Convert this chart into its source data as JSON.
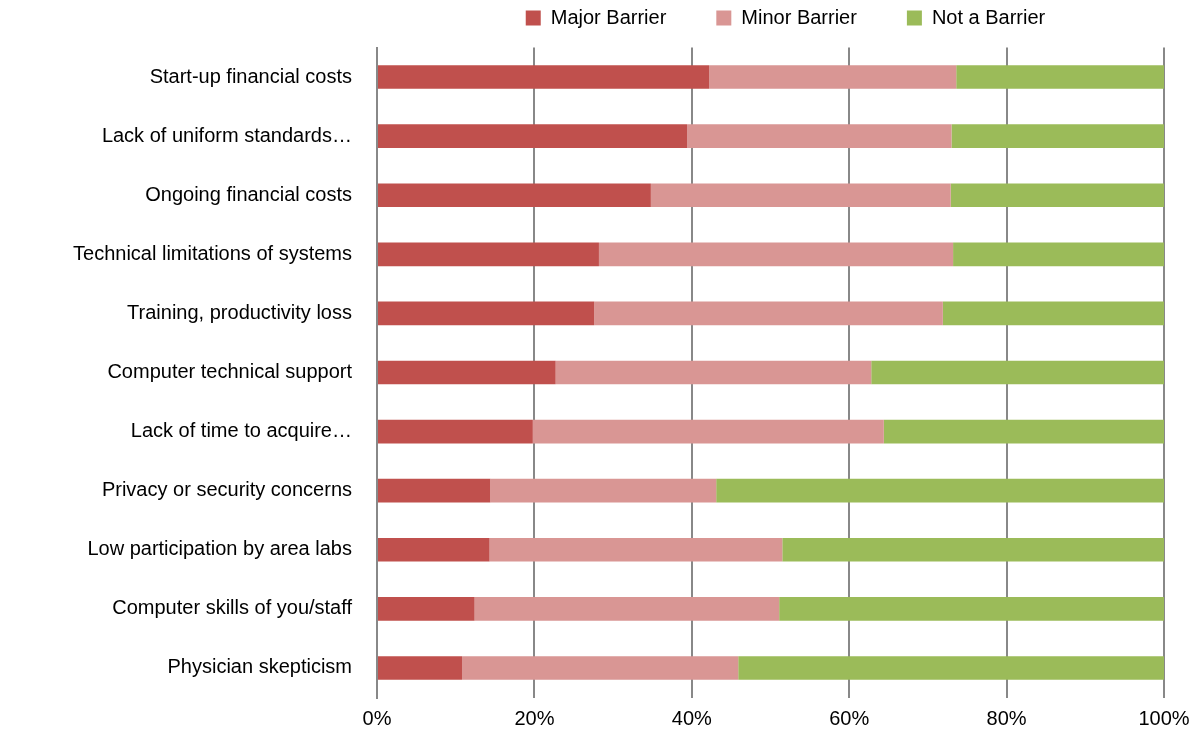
{
  "chart_data": {
    "type": "bar",
    "orientation": "horizontal",
    "stacked": true,
    "categories": [
      "Start-up financial costs",
      "Lack of uniform standards…",
      "Ongoing financial costs",
      "Technical limitations of systems",
      "Training, productivity loss",
      "Computer technical support",
      "Lack of time to acquire…",
      "Privacy or security concerns",
      "Low participation by area labs",
      "Computer skills of you/staff",
      "Physician skepticism"
    ],
    "series": [
      {
        "name": "Major Barrier",
        "color": "#c0504d",
        "values": [
          42.2,
          39.4,
          34.8,
          28.2,
          27.6,
          22.7,
          19.8,
          14.4,
          14.3,
          12.4,
          10.8
        ]
      },
      {
        "name": "Minor Barrier",
        "color": "#d99694",
        "values": [
          31.4,
          33.6,
          38.1,
          45.0,
          44.3,
          40.1,
          44.6,
          28.7,
          37.2,
          38.7,
          35.1
        ]
      },
      {
        "name": "Not a Barrier",
        "color": "#9bbb59",
        "values": [
          26.4,
          27.0,
          27.1,
          26.8,
          28.1,
          37.2,
          35.6,
          56.9,
          48.5,
          48.9,
          54.1
        ]
      }
    ],
    "xlim": [
      0,
      100
    ],
    "xticks": [
      {
        "value": 0,
        "label": "0%"
      },
      {
        "value": 20,
        "label": "20%"
      },
      {
        "value": 40,
        "label": "40%"
      },
      {
        "value": 60,
        "label": "60%"
      },
      {
        "value": 80,
        "label": "80%"
      },
      {
        "value": 100,
        "label": "100%"
      }
    ],
    "grid": "x",
    "legend": "top"
  }
}
